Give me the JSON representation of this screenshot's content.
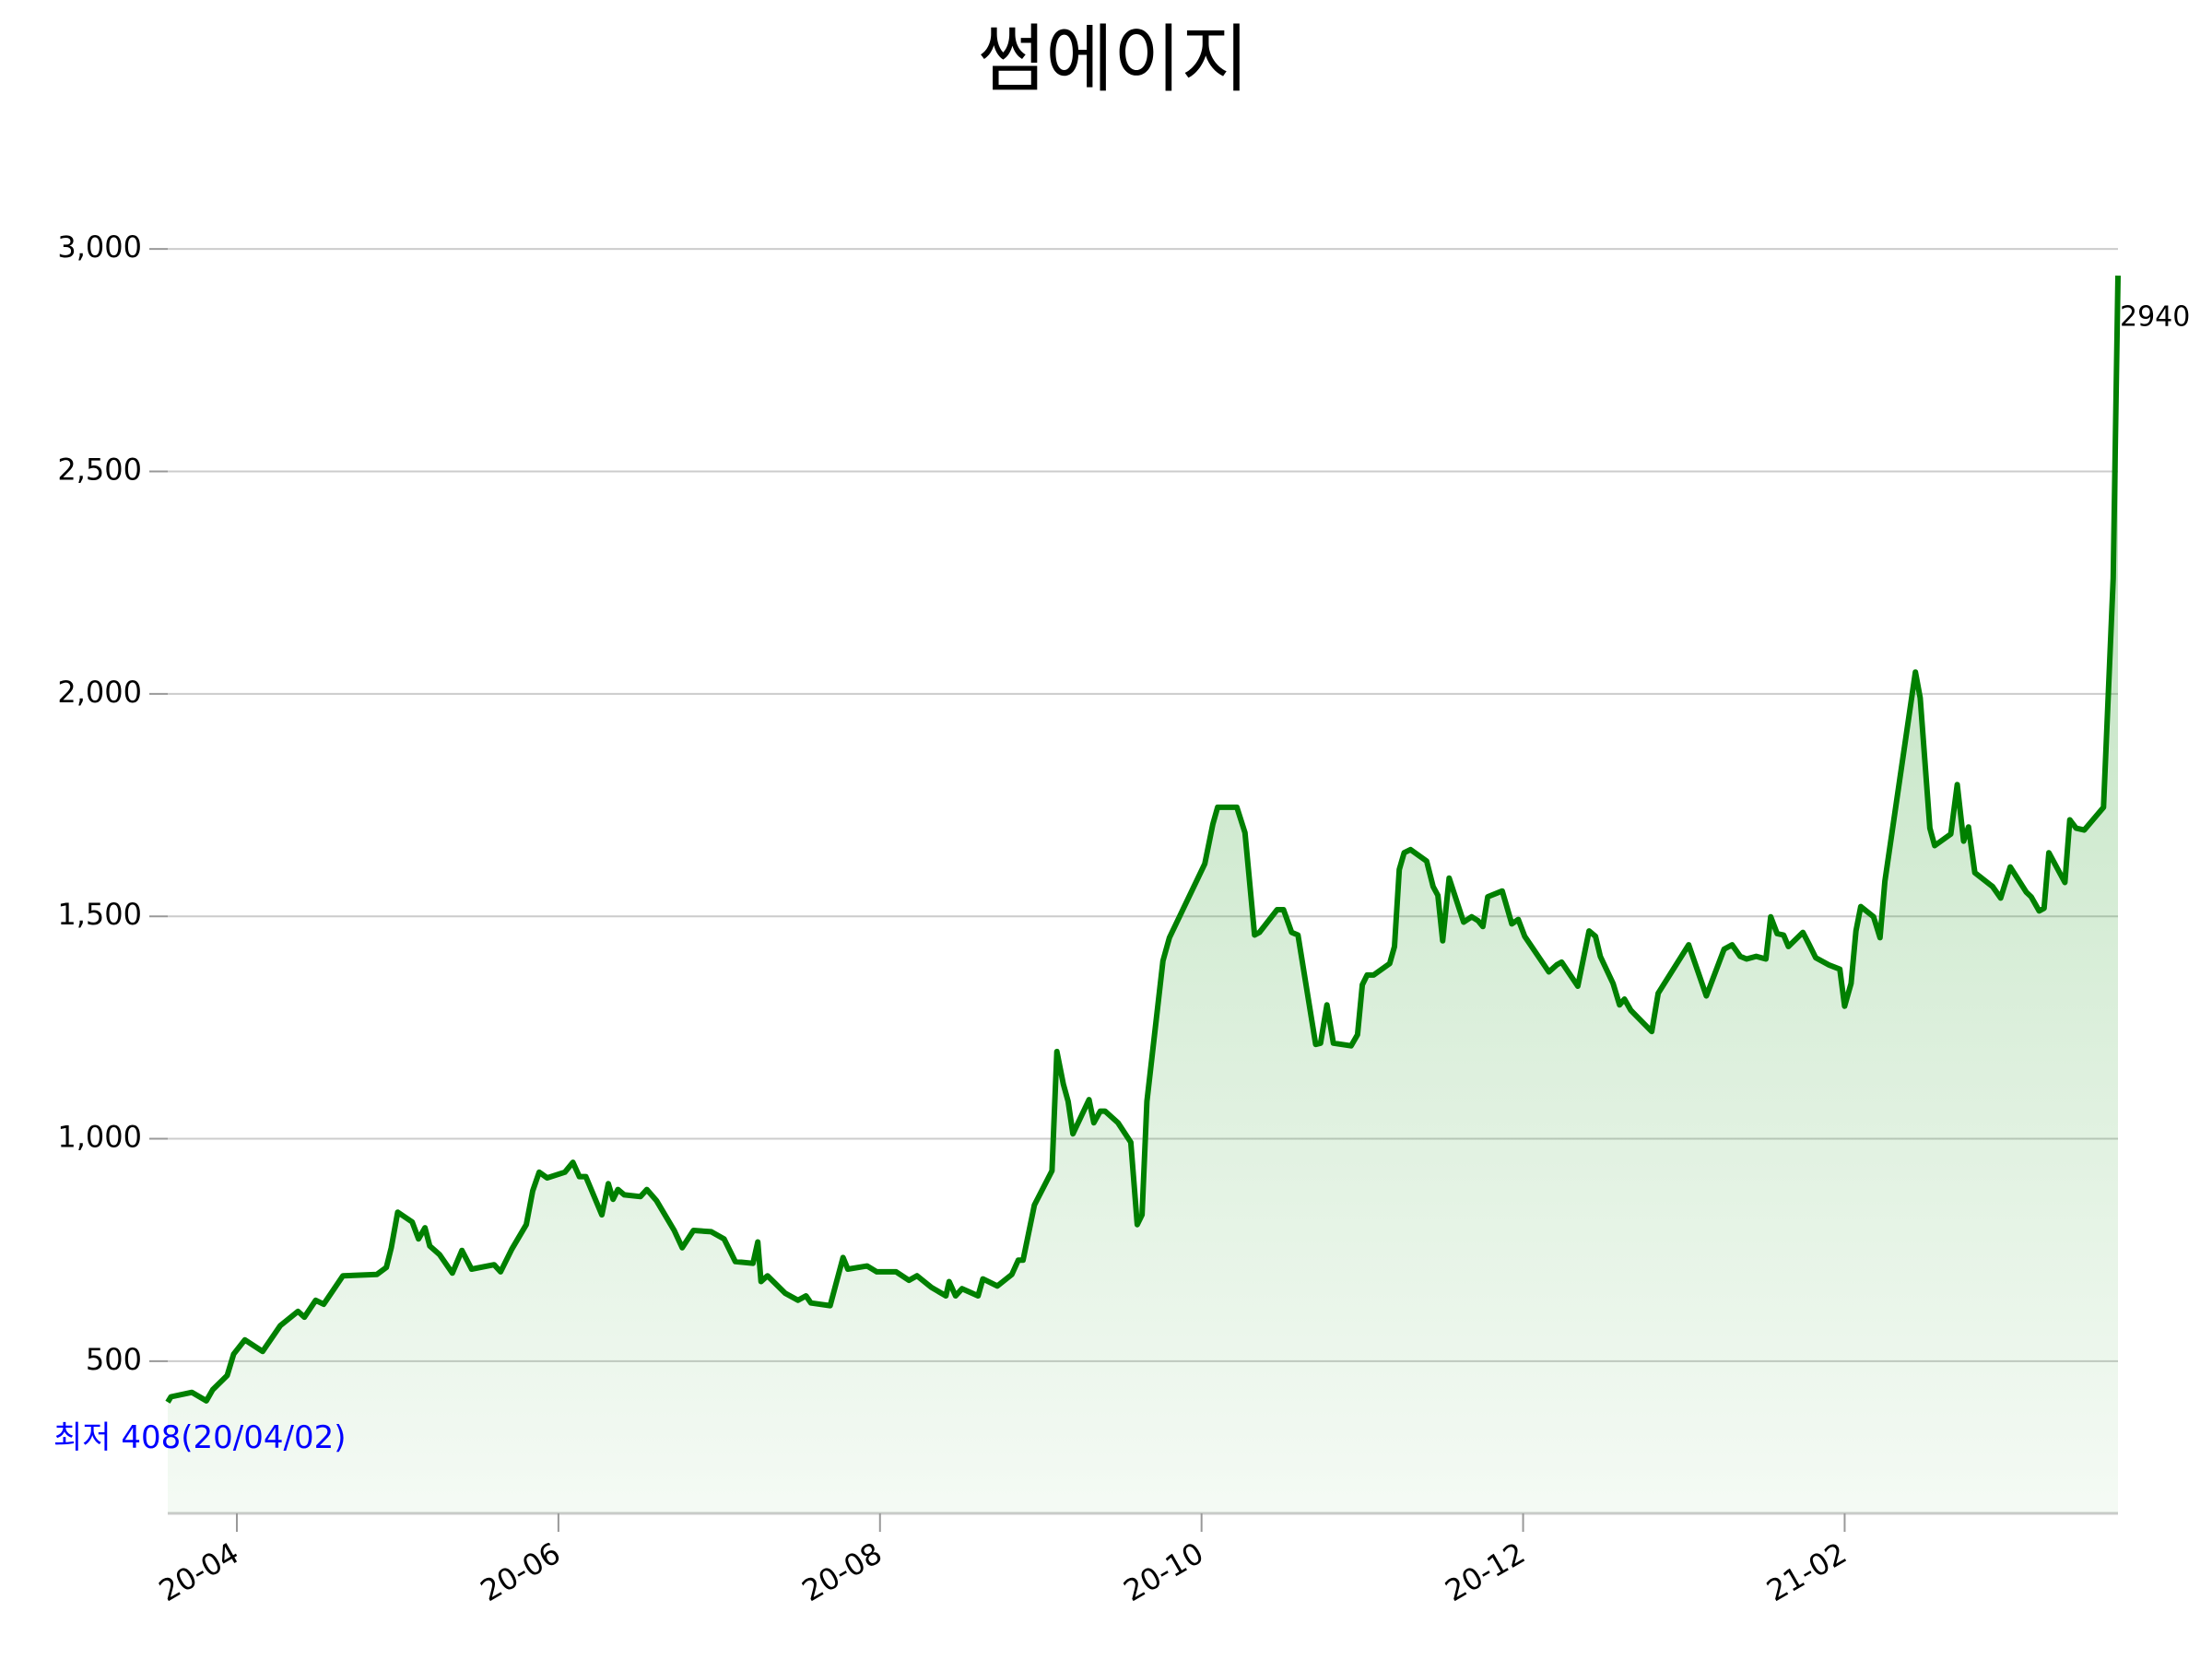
{
  "chart_data": {
    "type": "line",
    "title": "썸에이지",
    "x": [
      3.57,
      3.59,
      3.72,
      3.81,
      3.85,
      3.94,
      3.98,
      4.05,
      4.16,
      4.27,
      4.38,
      4.42,
      4.49,
      4.54,
      4.66,
      4.87,
      4.93,
      4.96,
      5.0,
      5.09,
      5.13,
      5.17,
      5.2,
      5.26,
      5.34,
      5.4,
      5.46,
      5.6,
      5.64,
      5.71,
      5.8,
      5.84,
      5.88,
      5.93,
      6.04,
      6.09,
      6.13,
      6.17,
      6.27,
      6.31,
      6.34,
      6.37,
      6.41,
      6.51,
      6.55,
      6.61,
      6.72,
      6.77,
      6.84,
      6.95,
      7.03,
      7.1,
      7.21,
      7.24,
      7.26,
      7.3,
      7.41,
      7.49,
      7.54,
      7.57,
      7.69,
      7.77,
      7.8,
      7.92,
      7.98,
      8.1,
      8.18,
      8.23,
      8.32,
      8.41,
      8.43,
      8.47,
      8.51,
      8.61,
      8.64,
      8.73,
      8.82,
      8.86,
      8.89,
      8.96,
      9.07,
      9.1,
      9.14,
      9.17,
      9.2,
      9.3,
      9.33,
      9.37,
      9.4,
      9.48,
      9.56,
      9.6,
      9.63,
      9.66,
      9.76,
      9.8,
      10.02,
      10.07,
      10.1,
      10.22,
      10.27,
      10.33,
      10.36,
      10.47,
      10.51,
      10.56,
      10.6,
      10.71,
      10.74,
      10.78,
      10.82,
      10.93,
      10.97,
      11.0,
      11.03,
      11.07,
      11.17,
      11.2,
      11.23,
      11.26,
      11.3,
      11.4,
      11.44,
      11.47,
      11.5,
      11.54,
      11.63,
      11.68,
      11.72,
      11.75,
      11.78,
      11.87,
      11.93,
      11.97,
      12.01,
      12.16,
      12.21,
      12.24,
      12.34,
      12.41,
      12.45,
      12.48,
      12.56,
      12.6,
      12.63,
      12.67,
      12.8,
      12.84,
      13.03,
      13.14,
      13.25,
      13.3,
      13.35,
      13.39,
      13.45,
      13.51,
      13.54,
      13.58,
      13.62,
      13.65,
      13.74,
      13.78,
      13.82,
      13.9,
      13.97,
      14.0,
      14.04,
      14.07,
      14.1,
      14.18,
      14.22,
      14.25,
      14.44,
      14.47,
      14.53,
      14.56,
      14.66,
      14.7,
      14.74,
      14.77,
      14.81,
      14.92,
      14.97,
      15.03,
      15.13,
      15.16,
      15.21,
      15.24,
      15.27,
      15.37,
      15.4,
      15.44,
      15.49,
      15.61,
      15.67,
      15.7
    ],
    "values": [
      408,
      420,
      430,
      411,
      436,
      468,
      516,
      548,
      522,
      580,
      612,
      599,
      637,
      628,
      692,
      695,
      711,
      755,
      835,
      813,
      775,
      800,
      759,
      740,
      698,
      749,
      707,
      717,
      701,
      752,
      807,
      883,
      925,
      912,
      925,
      947,
      915,
      915,
      829,
      899,
      864,
      886,
      874,
      870,
      886,
      861,
      794,
      755,
      794,
      791,
      775,
      724,
      720,
      768,
      679,
      692,
      653,
      637,
      647,
      631,
      625,
      733,
      707,
      714,
      701,
      701,
      682,
      692,
      666,
      647,
      679,
      647,
      663,
      647,
      685,
      669,
      695,
      727,
      727,
      851,
      928,
      1196,
      1123,
      1084,
      1011,
      1088,
      1036,
      1062,
      1062,
      1036,
      992,
      807,
      829,
      1084,
      1400,
      1452,
      1618,
      1707,
      1745,
      1745,
      1688,
      1458,
      1464,
      1515,
      1515,
      1464,
      1458,
      1212,
      1215,
      1301,
      1215,
      1209,
      1234,
      1346,
      1368,
      1368,
      1394,
      1432,
      1605,
      1643,
      1650,
      1624,
      1567,
      1547,
      1445,
      1586,
      1487,
      1499,
      1490,
      1477,
      1544,
      1557,
      1483,
      1493,
      1455,
      1375,
      1391,
      1397,
      1343,
      1467,
      1455,
      1410,
      1349,
      1301,
      1314,
      1289,
      1241,
      1327,
      1436,
      1321,
      1426,
      1436,
      1410,
      1404,
      1410,
      1404,
      1499,
      1461,
      1458,
      1432,
      1464,
      1436,
      1407,
      1391,
      1381,
      1298,
      1349,
      1467,
      1522,
      1499,
      1452,
      1579,
      2049,
      1991,
      1698,
      1659,
      1685,
      1796,
      1669,
      1701,
      1598,
      1567,
      1541,
      1611,
      1554,
      1544,
      1512,
      1518,
      1643,
      1576,
      1717,
      1698,
      1694,
      1745,
      2259,
      2940
    ],
    "color": "#008000",
    "xlim": [
      3.57,
      15.7
    ],
    "xticks": [
      {
        "value": 4,
        "label": "20-04"
      },
      {
        "value": 6,
        "label": "20-06"
      },
      {
        "value": 8,
        "label": "20-08"
      },
      {
        "value": 10,
        "label": "20-10"
      },
      {
        "value": 12,
        "label": "20-12"
      },
      {
        "value": 14,
        "label": "21-02"
      }
    ],
    "ylim": [
      158,
      3050
    ],
    "yticks": [
      500,
      {
        "value": 1000,
        "label": "1,000"
      },
      {
        "value": 1500,
        "label": "1,500"
      },
      {
        "value": 2000,
        "label": "2,000"
      },
      {
        "value": 2500,
        "label": "2,500"
      },
      {
        "value": 3000,
        "label": "3,000"
      }
    ],
    "grid": true,
    "annotations": [
      {
        "text": "최저 408(20/04/02)",
        "color": "#0000ff"
      },
      {
        "text": "2940",
        "color": "#000000"
      }
    ]
  }
}
